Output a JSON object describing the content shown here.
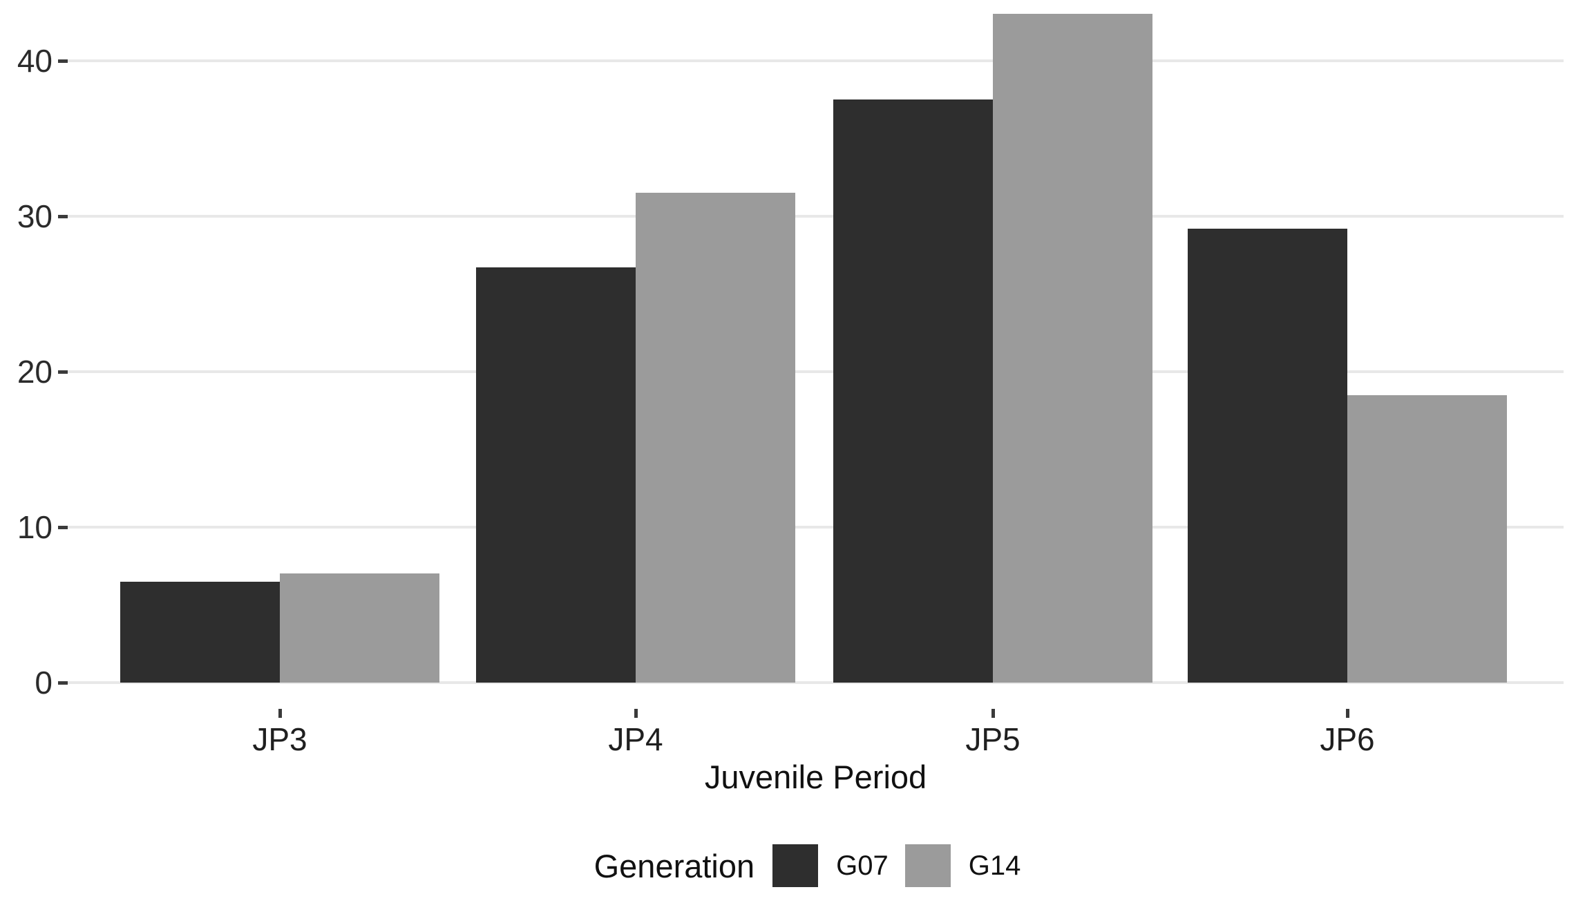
{
  "chart_data": {
    "type": "bar",
    "title": "",
    "xlabel": "Juvenile Period",
    "ylabel": "",
    "categories": [
      "JP3",
      "JP4",
      "JP5",
      "JP6"
    ],
    "series": [
      {
        "name": "G07",
        "color": "#2e2e2e",
        "values": [
          6.5,
          26.7,
          37.5,
          29.2
        ]
      },
      {
        "name": "G14",
        "color": "#9b9b9b",
        "values": [
          7.0,
          31.5,
          43.0,
          18.5
        ]
      }
    ],
    "ylim": [
      0,
      43.5
    ],
    "yticks": [
      0,
      10,
      20,
      30,
      40
    ],
    "grid": "horizontal",
    "legend_title": "Generation",
    "legend_position": "bottom-center",
    "colors": {
      "background": "#ffffff",
      "gridline": "#e8e8e8",
      "tick": "#3a3a3a",
      "text": "#1f1f1f"
    }
  }
}
